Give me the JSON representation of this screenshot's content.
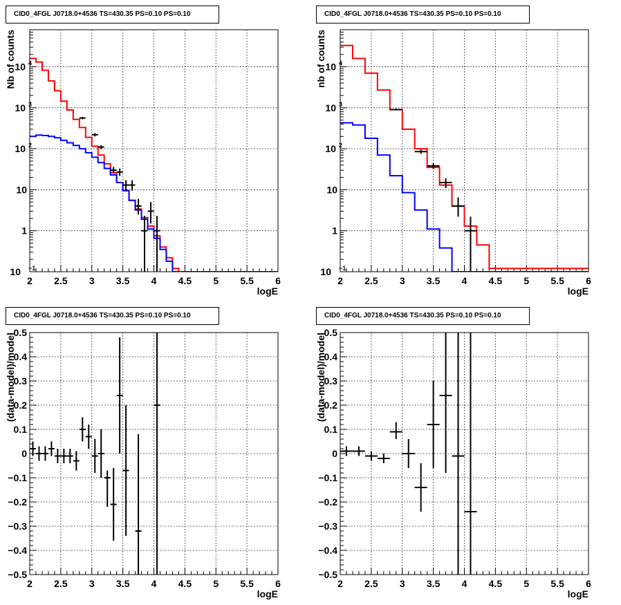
{
  "pads": [
    {
      "title": "CID0_4FGL J0718.0+4536 TS=430.35 PS=0.10 PS=0.10",
      "chart_data": {
        "type": "line",
        "xlabel": "logE",
        "ylabel": "Nb of counts",
        "xlim": [
          2,
          6
        ],
        "ylim": [
          0.1,
          80000
        ],
        "ylog": true,
        "grid": true,
        "xticks": [
          "2",
          "2.5",
          "3",
          "3.5",
          "4",
          "4.5",
          "5",
          "5.5",
          "6"
        ],
        "yticks": [
          {
            "v": 0.1,
            "t": "10"
          },
          {
            "v": 1,
            "t": "1"
          },
          {
            "v": 10,
            "t": "10"
          },
          {
            "v": 100,
            "t": "10"
          },
          {
            "v": 1000,
            "t": "10"
          },
          {
            "v": 10000,
            "t": "10"
          }
        ],
        "series": [
          {
            "color": "#ff0000",
            "kind": "step",
            "binw": 0.1,
            "x0": 2.0,
            "values": [
              16000,
              13000,
              8200,
              4500,
              2600,
              1450,
              880,
              520,
              330,
              190,
              115,
              70,
              43,
              26,
              15,
              9.5,
              5.5,
              3.4,
              2.1,
              1.3,
              0.75,
              0.4,
              0.22,
              0.12,
              0.1
            ]
          },
          {
            "color": "#0000ff",
            "kind": "step",
            "binw": 0.1,
            "x0": 2.0,
            "values": [
              200,
              215,
              210,
              200,
              185,
              160,
              140,
              120,
              100,
              80,
              62,
              46,
              33,
              23,
              15,
              9.5,
              5.5,
              3.2,
              1.9,
              1.1,
              0.65,
              0.35,
              0.18,
              0.1
            ]
          },
          {
            "color": "#000000",
            "kind": "points",
            "points": [
              {
                "x": 2.85,
                "y": 560,
                "xe": 0.05,
                "ylo": 520,
                "yhi": 600
              },
              {
                "x": 3.05,
                "y": 220,
                "xe": 0.05,
                "ylo": 200,
                "yhi": 240
              },
              {
                "x": 3.15,
                "y": 110,
                "xe": 0.05,
                "ylo": 98,
                "yhi": 122
              },
              {
                "x": 3.35,
                "y": 30,
                "xe": 0.05,
                "ylo": 25,
                "yhi": 36
              },
              {
                "x": 3.45,
                "y": 27,
                "xe": 0.05,
                "ylo": 22,
                "yhi": 33
              },
              {
                "x": 3.55,
                "y": 13,
                "xe": 0.05,
                "ylo": 9.5,
                "yhi": 17
              },
              {
                "x": 3.65,
                "y": 13,
                "xe": 0.05,
                "ylo": 9.5,
                "yhi": 17
              },
              {
                "x": 3.75,
                "y": 4,
                "xe": 0.05,
                "ylo": 2.5,
                "yhi": 6
              },
              {
                "x": 3.85,
                "y": 1,
                "xe": 0.05,
                "ylo": 0.1,
                "yhi": 2.3
              },
              {
                "x": 3.95,
                "y": 3,
                "xe": 0.05,
                "ylo": 1.5,
                "yhi": 5
              },
              {
                "x": 4.05,
                "y": 1,
                "xe": 0.05,
                "ylo": 0.1,
                "yhi": 2.3
              }
            ]
          }
        ]
      }
    },
    {
      "title": "CID0_4FGL J0718.0+4536 TS=430.35 PS=0.10 PS=0.10",
      "chart_data": {
        "type": "line",
        "xlabel": "logE",
        "ylabel": "nb of counts",
        "xlim": [
          2,
          6
        ],
        "ylim": [
          0.1,
          80000
        ],
        "ylog": true,
        "grid": true,
        "xticks": [
          "2",
          "2.5",
          "3",
          "3.5",
          "4",
          "4.5",
          "5",
          "5.5",
          "6"
        ],
        "yticks": [
          {
            "v": 0.1,
            "t": "10"
          },
          {
            "v": 1,
            "t": "1"
          },
          {
            "v": 10,
            "t": "10"
          },
          {
            "v": 100,
            "t": "10"
          },
          {
            "v": 1000,
            "t": "10"
          },
          {
            "v": 10000,
            "t": "10"
          }
        ],
        "series": [
          {
            "color": "#ff0000",
            "kind": "step",
            "binw": 0.2,
            "x0": 2.0,
            "values": [
              33000,
              16000,
              7000,
              2700,
              900,
              300,
              100,
              35,
              13,
              4,
              1.3,
              0.45,
              0.12
            ]
          },
          {
            "color": "#0000ff",
            "kind": "step",
            "binw": 0.2,
            "x0": 2.0,
            "values": [
              430,
              380,
              180,
              70,
              22,
              8.5,
              3.2,
              1.1,
              0.38,
              0.1
            ]
          },
          {
            "color": "#000000",
            "kind": "points",
            "points": [
              {
                "x": 2.9,
                "y": 900,
                "xe": 0.1,
                "ylo": 860,
                "yhi": 960
              },
              {
                "x": 3.3,
                "y": 85,
                "xe": 0.1,
                "ylo": 75,
                "yhi": 95
              },
              {
                "x": 3.5,
                "y": 38,
                "xe": 0.1,
                "ylo": 32,
                "yhi": 44
              },
              {
                "x": 3.7,
                "y": 15,
                "xe": 0.1,
                "ylo": 11,
                "yhi": 19
              },
              {
                "x": 3.9,
                "y": 4,
                "xe": 0.1,
                "ylo": 2.2,
                "yhi": 6.5
              },
              {
                "x": 4.1,
                "y": 1,
                "xe": 0.1,
                "ylo": 0.1,
                "yhi": 2.2
              }
            ]
          }
        ]
      }
    },
    {
      "title": "CID0_4FGL J0718.0+4536 TS=430.35 PS=0.10 PS=0.10",
      "chart_data": {
        "type": "scatter",
        "xlabel": "logE",
        "ylabel": "(data-model)/model",
        "xlim": [
          2,
          6
        ],
        "ylim": [
          -0.5,
          0.5
        ],
        "ylog": false,
        "grid": true,
        "xticks": [
          "2",
          "2.5",
          "3",
          "3.5",
          "4",
          "4.5",
          "5",
          "5.5",
          "6"
        ],
        "yticks": [
          {
            "v": -0.5,
            "t": "−0.5"
          },
          {
            "v": -0.4,
            "t": "−0.4"
          },
          {
            "v": -0.3,
            "t": "−0.3"
          },
          {
            "v": -0.2,
            "t": "−0.2"
          },
          {
            "v": -0.1,
            "t": "−0.1"
          },
          {
            "v": 0,
            "t": "0"
          },
          {
            "v": 0.1,
            "t": "0.1"
          },
          {
            "v": 0.2,
            "t": "0.2"
          },
          {
            "v": 0.3,
            "t": "0.3"
          },
          {
            "v": 0.4,
            "t": "0.4"
          },
          {
            "v": 0.5,
            "t": "0.5"
          }
        ],
        "series": [
          {
            "color": "#000000",
            "kind": "points",
            "points": [
              {
                "x": 2.05,
                "y": 0.02,
                "xe": 0.05,
                "ylo": -0.01,
                "yhi": 0.05
              },
              {
                "x": 2.15,
                "y": 0.0,
                "xe": 0.05,
                "ylo": -0.03,
                "yhi": 0.03
              },
              {
                "x": 2.25,
                "y": 0.0,
                "xe": 0.05,
                "ylo": -0.03,
                "yhi": 0.03
              },
              {
                "x": 2.35,
                "y": 0.02,
                "xe": 0.05,
                "ylo": -0.01,
                "yhi": 0.05
              },
              {
                "x": 2.45,
                "y": -0.01,
                "xe": 0.05,
                "ylo": -0.04,
                "yhi": 0.02
              },
              {
                "x": 2.55,
                "y": -0.01,
                "xe": 0.05,
                "ylo": -0.04,
                "yhi": 0.02
              },
              {
                "x": 2.65,
                "y": -0.01,
                "xe": 0.05,
                "ylo": -0.04,
                "yhi": 0.02
              },
              {
                "x": 2.75,
                "y": -0.03,
                "xe": 0.05,
                "ylo": -0.07,
                "yhi": 0.01
              },
              {
                "x": 2.85,
                "y": 0.1,
                "xe": 0.05,
                "ylo": 0.05,
                "yhi": 0.15
              },
              {
                "x": 2.95,
                "y": 0.07,
                "xe": 0.05,
                "ylo": 0.02,
                "yhi": 0.12
              },
              {
                "x": 3.05,
                "y": -0.01,
                "xe": 0.05,
                "ylo": -0.08,
                "yhi": 0.06
              },
              {
                "x": 3.15,
                "y": 0.0,
                "xe": 0.05,
                "ylo": -0.1,
                "yhi": 0.1
              },
              {
                "x": 3.25,
                "y": -0.1,
                "xe": 0.05,
                "ylo": -0.22,
                "yhi": -0.07
              },
              {
                "x": 3.35,
                "y": -0.21,
                "xe": 0.05,
                "ylo": -0.36,
                "yhi": -0.06
              },
              {
                "x": 3.45,
                "y": 0.24,
                "xe": 0.05,
                "ylo": 0.0,
                "yhi": 0.48
              },
              {
                "x": 3.55,
                "y": -0.07,
                "xe": 0.05,
                "ylo": -0.34,
                "yhi": 0.2
              },
              {
                "x": 3.75,
                "y": -0.32,
                "xe": 0.05,
                "ylo": -0.5,
                "yhi": 0.08
              },
              {
                "x": 4.05,
                "y": 0.2,
                "xe": 0.05,
                "ylo": -0.5,
                "yhi": 0.5
              }
            ]
          }
        ]
      }
    },
    {
      "title": "CID0_4FGL J0718.0+4536 TS=430.35 PS=0.10 PS=0.10",
      "chart_data": {
        "type": "scatter",
        "xlabel": "logE",
        "ylabel": "(data-model)/model",
        "xlim": [
          2,
          6
        ],
        "ylim": [
          -0.5,
          0.5
        ],
        "ylog": false,
        "grid": true,
        "xticks": [
          "2",
          "2.5",
          "3",
          "3.5",
          "4",
          "4.5",
          "5",
          "5.5",
          "6"
        ],
        "yticks": [
          {
            "v": -0.5,
            "t": "−0.5"
          },
          {
            "v": -0.4,
            "t": "−0.4"
          },
          {
            "v": -0.3,
            "t": "−0.3"
          },
          {
            "v": -0.2,
            "t": "−0.2"
          },
          {
            "v": -0.1,
            "t": "−0.1"
          },
          {
            "v": 0,
            "t": "0"
          },
          {
            "v": 0.1,
            "t": "0.1"
          },
          {
            "v": 0.2,
            "t": "0.2"
          },
          {
            "v": 0.3,
            "t": "0.3"
          },
          {
            "v": 0.4,
            "t": "0.4"
          },
          {
            "v": 0.5,
            "t": "0.5"
          }
        ],
        "series": [
          {
            "color": "#000000",
            "kind": "points",
            "points": [
              {
                "x": 2.1,
                "y": 0.01,
                "xe": 0.1,
                "ylo": -0.01,
                "yhi": 0.03
              },
              {
                "x": 2.3,
                "y": 0.01,
                "xe": 0.1,
                "ylo": -0.01,
                "yhi": 0.03
              },
              {
                "x": 2.5,
                "y": -0.01,
                "xe": 0.1,
                "ylo": -0.03,
                "yhi": 0.01
              },
              {
                "x": 2.7,
                "y": -0.02,
                "xe": 0.1,
                "ylo": -0.04,
                "yhi": 0.0
              },
              {
                "x": 2.9,
                "y": 0.09,
                "xe": 0.1,
                "ylo": 0.06,
                "yhi": 0.13
              },
              {
                "x": 3.1,
                "y": 0.0,
                "xe": 0.1,
                "ylo": -0.06,
                "yhi": 0.06
              },
              {
                "x": 3.3,
                "y": -0.14,
                "xe": 0.1,
                "ylo": -0.24,
                "yhi": -0.04
              },
              {
                "x": 3.5,
                "y": 0.12,
                "xe": 0.1,
                "ylo": -0.06,
                "yhi": 0.3
              },
              {
                "x": 3.7,
                "y": 0.24,
                "xe": 0.1,
                "ylo": -0.08,
                "yhi": 0.5
              },
              {
                "x": 3.9,
                "y": -0.01,
                "xe": 0.1,
                "ylo": -0.5,
                "yhi": 0.5
              },
              {
                "x": 4.1,
                "y": -0.24,
                "xe": 0.1,
                "ylo": -0.5,
                "yhi": 0.5
              }
            ]
          }
        ]
      }
    }
  ]
}
